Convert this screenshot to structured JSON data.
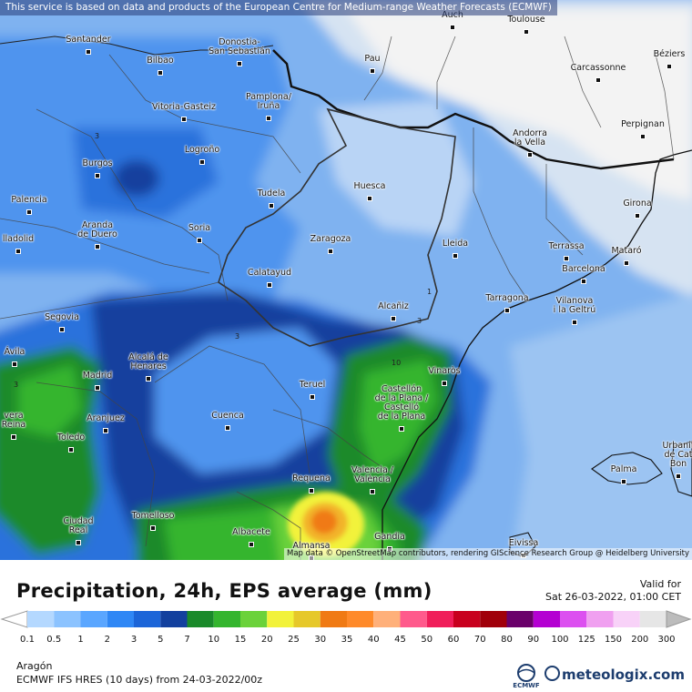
{
  "top_note": "This service is based on data and products of the European Centre for Medium-range Weather Forecasts (ECMWF)",
  "attribution": "Map data © OpenStreetMap contributors, rendering GIScience Research Group @ Heidelberg University",
  "title": "Precipitation, 24h, EPS average (mm)",
  "valid_label": "Valid for",
  "valid_value": "Sat 26-03-2022, 01:00 CET",
  "region": "Aragón",
  "model": "ECMWF IFS HRES (10 days) from 24-03-2022/00z",
  "brand": "meteologix.com",
  "logo_text": "ECMWF",
  "legend": {
    "labels": [
      "0.1",
      "0.5",
      "1",
      "2",
      "3",
      "5",
      "7",
      "10",
      "15",
      "20",
      "25",
      "30",
      "35",
      "40",
      "45",
      "50",
      "60",
      "70",
      "80",
      "90",
      "100",
      "125",
      "150",
      "200",
      "300"
    ],
    "colors": [
      "#ffffff",
      "#b4d8ff",
      "#8cc3ff",
      "#5aa6ff",
      "#2f87f5",
      "#1c65d8",
      "#13409e",
      "#1a8a2a",
      "#34b52e",
      "#6bd23a",
      "#f2f23a",
      "#e6c82a",
      "#f07a14",
      "#ff8a2a",
      "#ffb07a",
      "#ff5a8c",
      "#f01e5a",
      "#c8001e",
      "#a0000a",
      "#6a006a",
      "#b400d2",
      "#dc50f0",
      "#f0a0f0",
      "#f8d2f8",
      "#e6e6e6"
    ]
  },
  "contour_labels": [
    "3",
    "3",
    "3",
    "1",
    "3",
    "10"
  ],
  "cities": [
    {
      "name": "Santander"
    },
    {
      "name": "Bilbao"
    },
    {
      "name": "Donostia-\nSan Sebastián"
    },
    {
      "name": "Auch"
    },
    {
      "name": "Toulouse"
    },
    {
      "name": "Pau"
    },
    {
      "name": "Carcassonne"
    },
    {
      "name": "Béziers"
    },
    {
      "name": "Vitoria-Gasteiz"
    },
    {
      "name": "Pamplona/\nIruña"
    },
    {
      "name": "Andorra\nla Vella"
    },
    {
      "name": "Perpignan"
    },
    {
      "name": "Burgos"
    },
    {
      "name": "Logroño"
    },
    {
      "name": "Palencia"
    },
    {
      "name": "Tudela"
    },
    {
      "name": "Huesca"
    },
    {
      "name": "Girona"
    },
    {
      "name": "Aranda\nde Duero"
    },
    {
      "name": "Soria"
    },
    {
      "name": "lladolid"
    },
    {
      "name": "Zaragoza"
    },
    {
      "name": "Lleida"
    },
    {
      "name": "Terrassa"
    },
    {
      "name": "Mataró"
    },
    {
      "name": "Barcelona"
    },
    {
      "name": "Calatayud"
    },
    {
      "name": "Tarragona"
    },
    {
      "name": "Vilanova\ni la Geltrú"
    },
    {
      "name": "Segovia"
    },
    {
      "name": "Alcañiz"
    },
    {
      "name": "Ávila"
    },
    {
      "name": "Alcalá de\nHenares"
    },
    {
      "name": "Madrid"
    },
    {
      "name": "Vinaròs"
    },
    {
      "name": "Teruel"
    },
    {
      "name": "Castellón\nde la Plana /\nCastelló\nde la Plana"
    },
    {
      "name": "vera\nReina"
    },
    {
      "name": "Aranjuez"
    },
    {
      "name": "Cuenca"
    },
    {
      "name": "Toledo"
    },
    {
      "name": "Urbanit\nde Cat\nBon"
    },
    {
      "name": "Palma"
    },
    {
      "name": "Requena"
    },
    {
      "name": "Valencia /\nValència"
    },
    {
      "name": "Ciudad\nReal"
    },
    {
      "name": "Tomelloso"
    },
    {
      "name": "Albacete"
    },
    {
      "name": "Gandia"
    },
    {
      "name": "Almansa"
    },
    {
      "name": "Eivissa"
    }
  ]
}
